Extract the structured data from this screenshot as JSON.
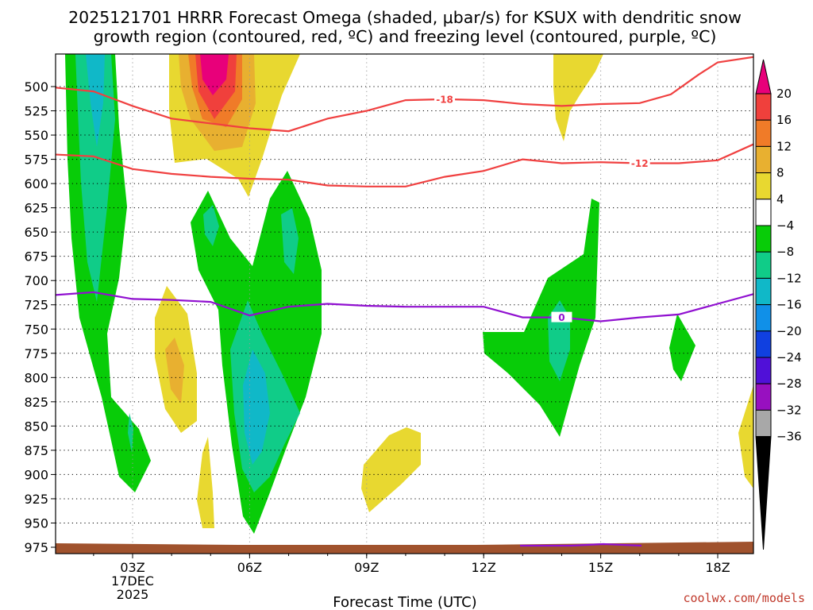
{
  "chart_data": {
    "type": "contour",
    "title_line1": "2025121701 HRRR Forecast Omega (shaded, μbar/s) for KSUX with dendritic snow",
    "title_line2": "growth region (contoured, red, ºC) and freezing level (contoured, purple, ºC)",
    "xlabel": "Forecast Time (UTC)",
    "x_ticks": [
      "03Z",
      "06Z",
      "09Z",
      "12Z",
      "15Z",
      "18Z"
    ],
    "x_date_line1": "17DEC",
    "x_date_line2": "2025",
    "x_range_hours": [
      1,
      19
    ],
    "y_ticks": [
      "500",
      "525",
      "550",
      "575",
      "600",
      "625",
      "650",
      "675",
      "700",
      "725",
      "750",
      "775",
      "800",
      "825",
      "850",
      "875",
      "900",
      "925",
      "950",
      "975"
    ],
    "y_range_hPa": [
      470,
      985
    ],
    "colorbar": {
      "labels": [
        "20",
        "16",
        "12",
        "8",
        "4",
        "−4",
        "−8",
        "−12",
        "−16",
        "−20",
        "−24",
        "−28",
        "−32",
        "−36"
      ],
      "colors": [
        "#e8007a",
        "#f0403c",
        "#f07b28",
        "#e8b030",
        "#e8d830",
        "#ffffff",
        "#08cc08",
        "#10cc88",
        "#10b8c8",
        "#1090e8",
        "#1040e0",
        "#5010d8",
        "#9810c0",
        "#a8a8a8",
        "#000000"
      ]
    },
    "contours": [
      {
        "name": "dgz_-18",
        "label": "-18",
        "color": "#f04040",
        "x": [
          1.0,
          2.0,
          3.0,
          4.0,
          5.0,
          6.0,
          7.0,
          8.0,
          9.0,
          10.0,
          11.0,
          12.0,
          13.0,
          14.0,
          15.0,
          16.0,
          16.8,
          17.5,
          18.0,
          19.0
        ],
        "y": [
          501,
          505,
          520,
          533,
          538,
          543,
          546,
          533,
          525,
          514,
          513,
          514,
          518,
          520,
          518,
          517,
          508,
          488,
          475,
          469
        ]
      },
      {
        "name": "dgz_-12",
        "label": "-12",
        "color": "#f04040",
        "x": [
          1.0,
          2.0,
          3.0,
          4.0,
          5.0,
          6.0,
          7.0,
          8.0,
          9.0,
          10.0,
          11.0,
          12.0,
          13.0,
          14.0,
          15.0,
          16.0,
          17.0,
          18.0,
          19.0
        ],
        "y": [
          570,
          572,
          585,
          590,
          593,
          595,
          596,
          602,
          603,
          603,
          593,
          587,
          575,
          579,
          578,
          579,
          579,
          576,
          558
        ]
      },
      {
        "name": "freezing_0",
        "label": "0",
        "color": "#9010d0",
        "x": [
          1.0,
          2.0,
          3.0,
          4.0,
          5.0,
          6.0,
          7.0,
          8.0,
          9.0,
          10.0,
          11.0,
          12.0,
          13.0,
          14.0,
          15.0,
          16.0,
          17.0,
          18.0,
          19.0
        ],
        "y": [
          715,
          712,
          719,
          720,
          722,
          736,
          727,
          724,
          726,
          727,
          727,
          727,
          738,
          738,
          742,
          738,
          735,
          724,
          713
        ]
      }
    ],
    "contour_labels_hPa_x": [
      {
        "text": "-18",
        "x": 11.0,
        "y": 513,
        "color": "#f04040"
      },
      {
        "text": "-12",
        "x": 16.0,
        "y": 579,
        "color": "#f04040"
      },
      {
        "text": "0",
        "x": 14.0,
        "y": 738,
        "color": "#9010d0"
      }
    ]
  },
  "credit": "coolwx.com/models"
}
